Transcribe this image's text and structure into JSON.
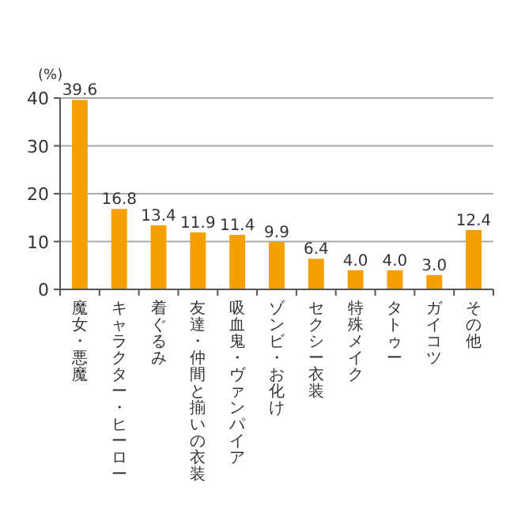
{
  "chart_data": {
    "type": "bar",
    "ylabel": "(%)",
    "categories": [
      "魔女・悪魔",
      "キャラクター・ヒーロー",
      "着ぐるみ",
      "友達・仲間と揃いの衣装",
      "吸血鬼・ヴァンパイア",
      "ゾンビ・お化け",
      "セクシー衣装",
      "特殊メイク",
      "タトゥー",
      "ガイコツ",
      "その他"
    ],
    "values": [
      39.6,
      16.8,
      13.4,
      11.9,
      11.4,
      9.9,
      6.4,
      4.0,
      4.0,
      3.0,
      12.4
    ],
    "value_labels": [
      "39.6",
      "16.8",
      "13.4",
      "11.9",
      "11.4",
      "9.9",
      "6.4",
      "4.0",
      "4.0",
      "3.0",
      "12.4"
    ],
    "color": "#f5a000",
    "ylim": [
      0,
      40
    ],
    "yticks": [
      0,
      10,
      20,
      30,
      40
    ],
    "grid": "y"
  }
}
